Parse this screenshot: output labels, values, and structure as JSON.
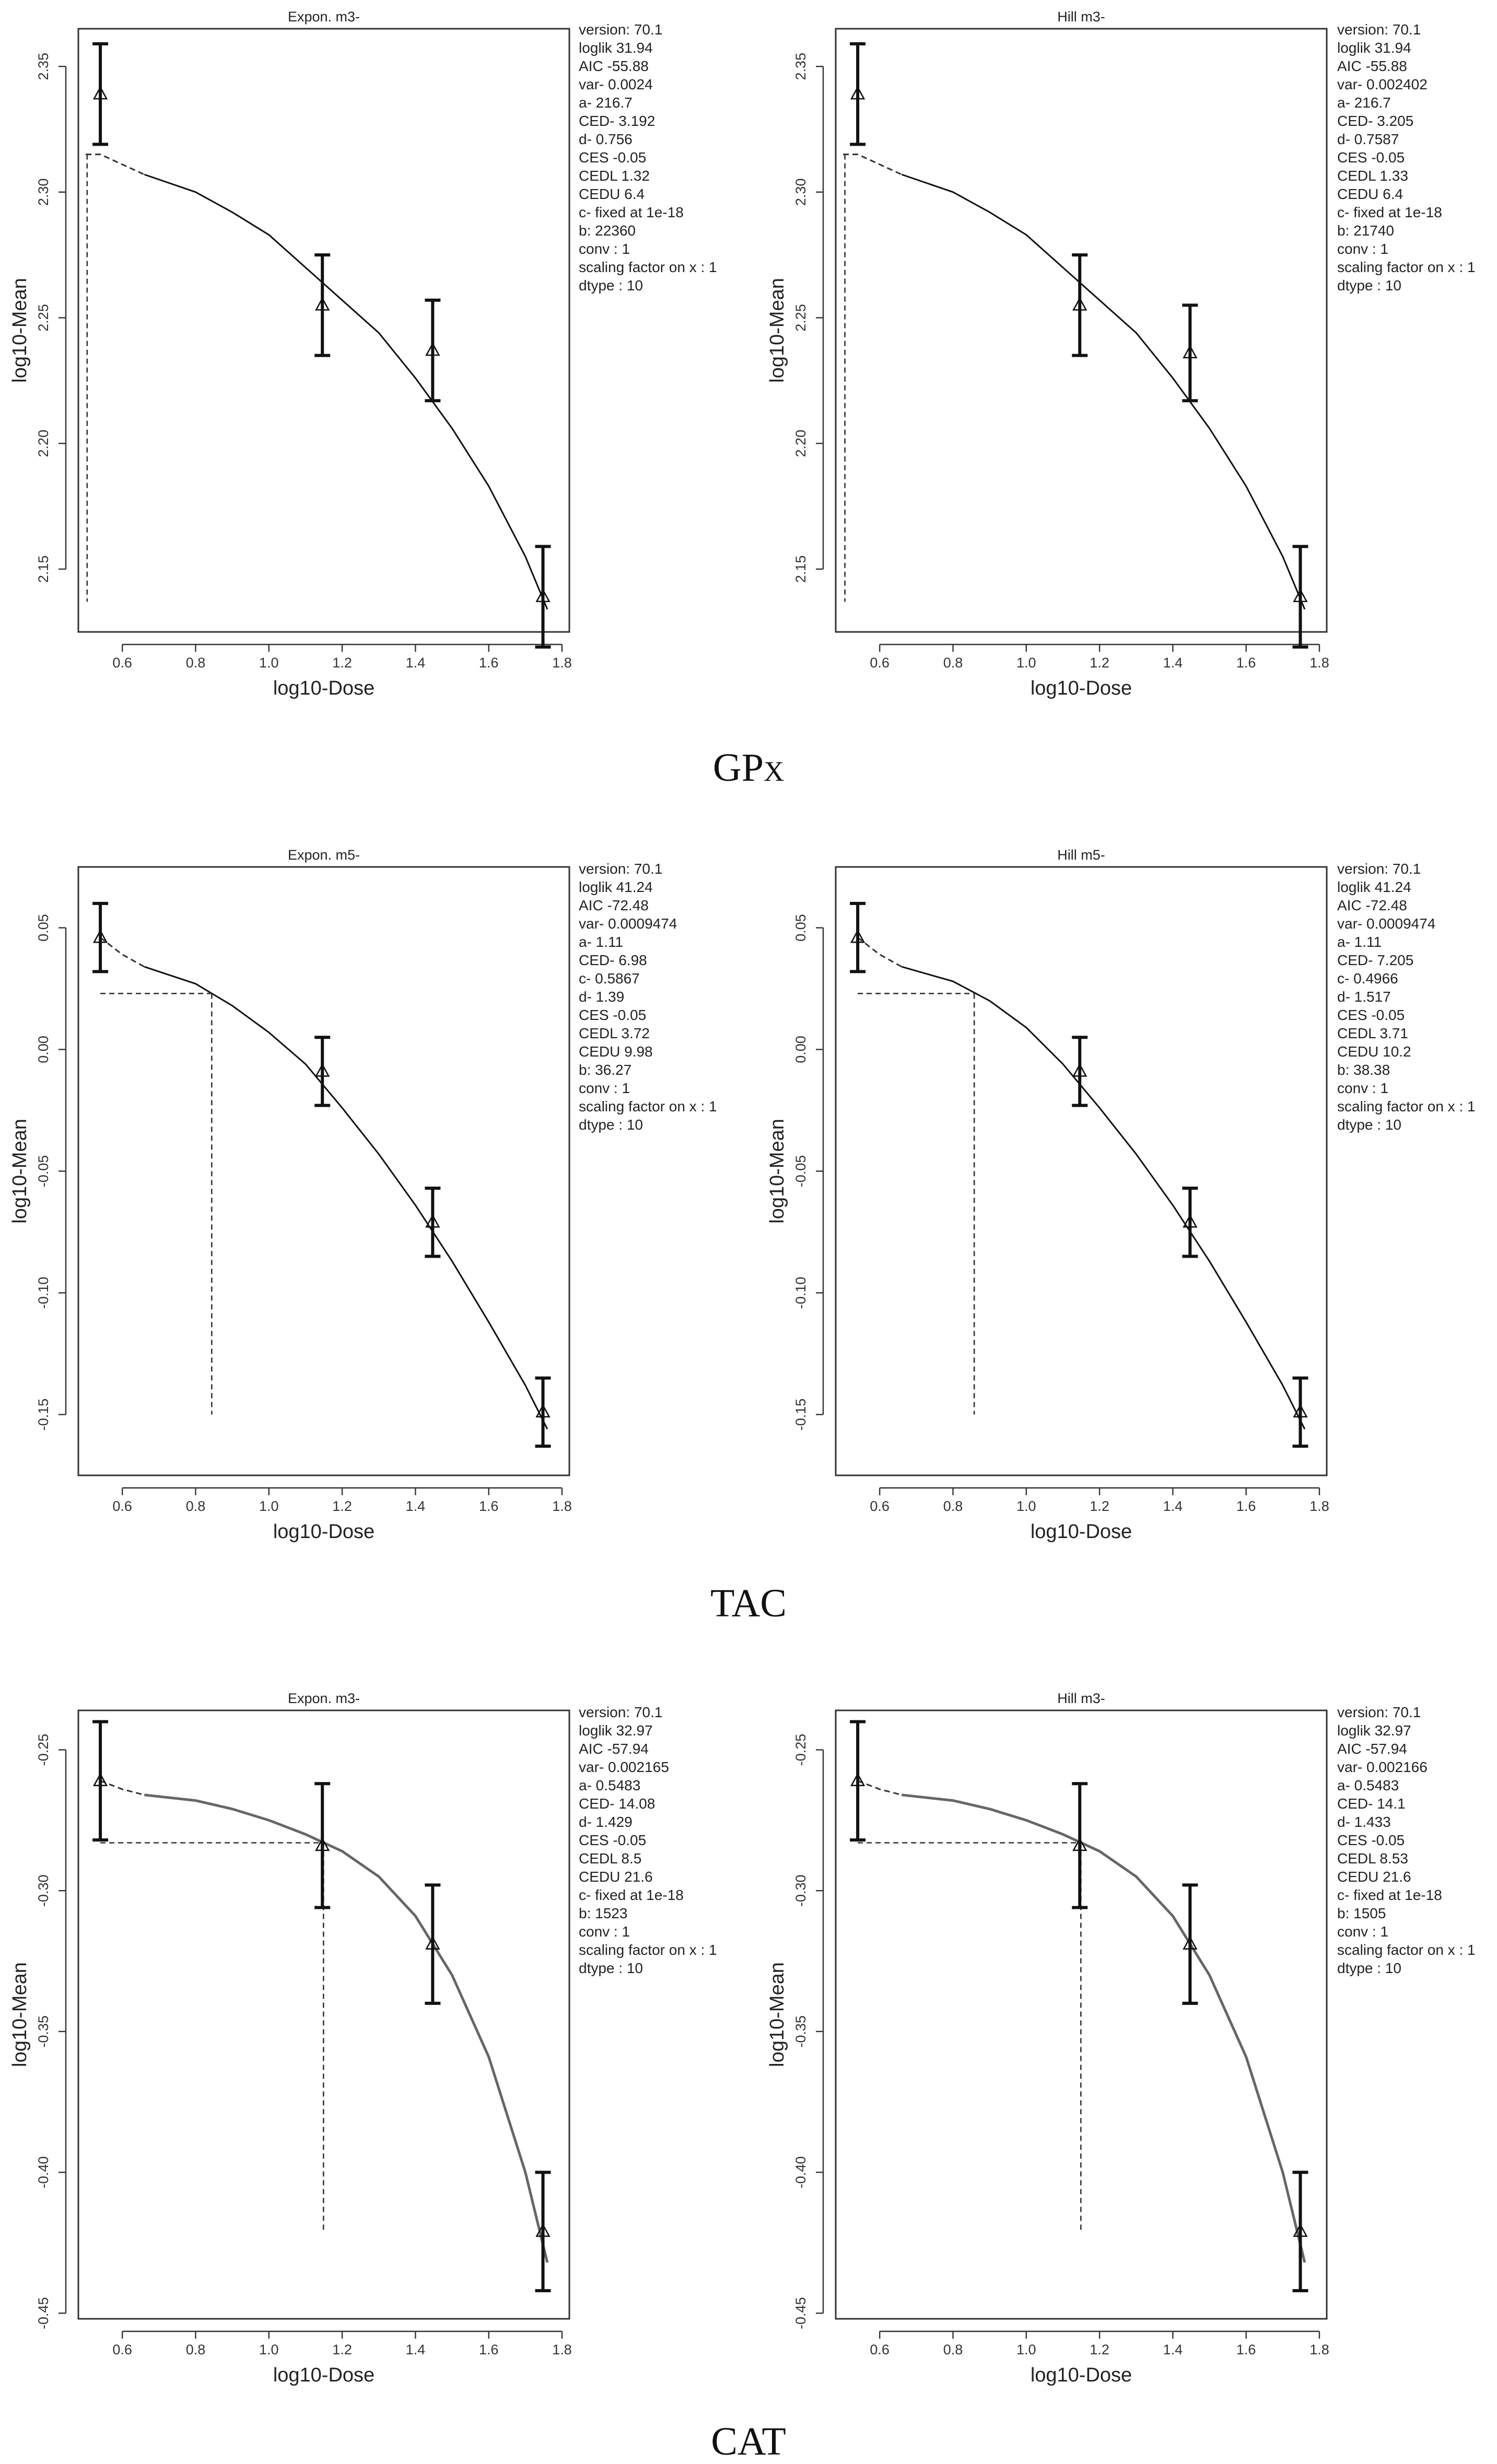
{
  "charts": [
    {
      "title": "Expon. m3-",
      "xlabel": "log10-Dose",
      "ylabel": "log10-Mean",
      "xticks": [
        "0.6",
        "0.8",
        "1.0",
        "1.2",
        "1.4",
        "1.6",
        "1.8"
      ],
      "yticks": [
        "2.15",
        "2.20",
        "2.25",
        "2.30",
        "2.35"
      ],
      "stats": [
        "version: 70.1",
        "loglik   31.94",
        "AIC   -55.88",
        "var-   0.0024",
        "a-   216.7",
        "CED-   3.192",
        "d-   0.756",
        "CES   -0.05",
        "CEDL   1.32",
        "CEDU   6.4",
        "c-  fixed at 1e-18",
        "b: 22360",
        "conv : 1",
        "scaling factor on x : 1",
        "dtype : 10"
      ]
    },
    {
      "title": "Hill m3-",
      "xlabel": "log10-Dose",
      "ylabel": "log10-Mean",
      "xticks": [
        "0.6",
        "0.8",
        "1.0",
        "1.2",
        "1.4",
        "1.6",
        "1.8"
      ],
      "yticks": [
        "2.15",
        "2.20",
        "2.25",
        "2.30",
        "2.35"
      ],
      "stats": [
        "version: 70.1",
        "loglik   31.94",
        "AIC   -55.88",
        "var-   0.002402",
        "a-   216.7",
        "CED-   3.205",
        "d-   0.7587",
        "CES   -0.05",
        "CEDL   1.33",
        "CEDU   6.4",
        "c-  fixed at 1e-18",
        "b: 21740",
        "conv : 1",
        "scaling factor on x : 1",
        "dtype : 10"
      ]
    },
    {
      "title": "Expon. m5-",
      "xlabel": "log10-Dose",
      "ylabel": "log10-Mean",
      "xticks": [
        "0.6",
        "0.8",
        "1.0",
        "1.2",
        "1.4",
        "1.6",
        "1.8"
      ],
      "yticks": [
        "-0.15",
        "-0.10",
        "-0.05",
        "0.00",
        "0.05"
      ],
      "stats": [
        "version: 70.1",
        "loglik   41.24",
        "AIC   -72.48",
        "var-   0.0009474",
        "a-   1.11",
        "CED-   6.98",
        "c-   0.5867",
        "d-   1.39",
        "CES   -0.05",
        "CEDL   3.72",
        "CEDU   9.98",
        "b: 36.27",
        "conv : 1",
        "scaling factor on x : 1",
        "dtype : 10"
      ]
    },
    {
      "title": "Hill m5-",
      "xlabel": "log10-Dose",
      "ylabel": "log10-Mean",
      "xticks": [
        "0.6",
        "0.8",
        "1.0",
        "1.2",
        "1.4",
        "1.6",
        "1.8"
      ],
      "yticks": [
        "-0.15",
        "-0.10",
        "-0.05",
        "0.00",
        "0.05"
      ],
      "stats": [
        "version: 70.1",
        "loglik   41.24",
        "AIC   -72.48",
        "var-   0.0009474",
        "a-   1.11",
        "CED-   7.205",
        "c-   0.4966",
        "d-   1.517",
        "CES   -0.05",
        "CEDL   3.71",
        "CEDU   10.2",
        "b: 38.38",
        "conv : 1",
        "scaling factor on x : 1",
        "dtype : 10"
      ]
    },
    {
      "title": "Expon. m3-",
      "xlabel": "log10-Dose",
      "ylabel": "log10-Mean",
      "xticks": [
        "0.6",
        "0.8",
        "1.0",
        "1.2",
        "1.4",
        "1.6",
        "1.8"
      ],
      "yticks": [
        "-0.45",
        "-0.40",
        "-0.35",
        "-0.30",
        "-0.25"
      ],
      "stats": [
        "version: 70.1",
        "loglik   32.97",
        "AIC   -57.94",
        "var-   0.002165",
        "a-   0.5483",
        "CED-   14.08",
        "d-   1.429",
        "CES   -0.05",
        "CEDL   8.5",
        "CEDU   21.6",
        "c-  fixed at 1e-18",
        "b: 1523",
        "conv : 1",
        "scaling factor on x : 1",
        "dtype : 10"
      ]
    },
    {
      "title": "Hill m3-",
      "xlabel": "log10-Dose",
      "ylabel": "log10-Mean",
      "xticks": [
        "0.6",
        "0.8",
        "1.0",
        "1.2",
        "1.4",
        "1.6",
        "1.8"
      ],
      "yticks": [
        "-0.45",
        "-0.40",
        "-0.35",
        "-0.30",
        "-0.25"
      ],
      "stats": [
        "version: 70.1",
        "loglik   32.97",
        "AIC   -57.94",
        "var-   0.002166",
        "a-   0.5483",
        "CED-   14.1",
        "d-   1.433",
        "CES   -0.05",
        "CEDL   8.53",
        "CEDU   21.6",
        "c-  fixed at 1e-18",
        "b: 1505",
        "conv : 1",
        "scaling factor on x : 1",
        "dtype : 10"
      ]
    }
  ],
  "captions": [
    "GPx",
    "TAC",
    "CAT"
  ],
  "chart_data": [
    {
      "type": "line",
      "panel": "GPx",
      "title": "Expon. m3-",
      "xlabel": "log10-Dose",
      "ylabel": "log10-Mean",
      "xlim": [
        0.48,
        1.82
      ],
      "ylim": [
        2.125,
        2.365
      ],
      "points": {
        "x": [
          0.54,
          1.146,
          1.447,
          1.748
        ],
        "y": [
          2.339,
          2.255,
          2.237,
          2.139
        ],
        "err": [
          0.02,
          0.02,
          0.02,
          0.02
        ]
      },
      "fit": {
        "x": [
          0.66,
          0.8,
          0.9,
          1.0,
          1.1,
          1.2,
          1.3,
          1.4,
          1.5,
          1.6,
          1.7,
          1.76
        ],
        "y": [
          2.307,
          2.3,
          2.292,
          2.283,
          2.27,
          2.257,
          2.244,
          2.226,
          2.206,
          2.183,
          2.155,
          2.134
        ]
      },
      "extrapolation": {
        "x": [
          0.5,
          0.54,
          0.66
        ],
        "y": [
          2.315,
          2.315,
          2.307
        ]
      },
      "ced": {
        "x": 0.504,
        "y_from": 2.315,
        "y_to": 2.137
      }
    },
    {
      "type": "line",
      "panel": "GPx",
      "title": "Hill m3-",
      "xlabel": "log10-Dose",
      "ylabel": "log10-Mean",
      "xlim": [
        0.48,
        1.82
      ],
      "ylim": [
        2.125,
        2.365
      ],
      "points": {
        "x": [
          0.54,
          1.146,
          1.447,
          1.748
        ],
        "y": [
          2.339,
          2.255,
          2.236,
          2.139
        ],
        "err": [
          0.02,
          0.02,
          0.019,
          0.02
        ]
      },
      "fit": {
        "x": [
          0.66,
          0.8,
          0.9,
          1.0,
          1.1,
          1.2,
          1.3,
          1.4,
          1.5,
          1.6,
          1.7,
          1.76
        ],
        "y": [
          2.307,
          2.3,
          2.292,
          2.283,
          2.27,
          2.257,
          2.244,
          2.226,
          2.206,
          2.183,
          2.155,
          2.134
        ]
      },
      "extrapolation": {
        "x": [
          0.5,
          0.54,
          0.66
        ],
        "y": [
          2.315,
          2.315,
          2.307
        ]
      },
      "ced": {
        "x": 0.505,
        "y_from": 2.315,
        "y_to": 2.137
      }
    },
    {
      "type": "line",
      "panel": "TAC",
      "title": "Expon. m5-",
      "xlabel": "log10-Dose",
      "ylabel": "log10-Mean",
      "xlim": [
        0.48,
        1.82
      ],
      "ylim": [
        -0.175,
        0.075
      ],
      "points": {
        "x": [
          0.54,
          1.146,
          1.447,
          1.748
        ],
        "y": [
          0.046,
          -0.009,
          -0.071,
          -0.149
        ],
        "err": [
          0.014,
          0.014,
          0.014,
          0.014
        ]
      },
      "fit": {
        "x": [
          0.66,
          0.8,
          0.9,
          1.0,
          1.1,
          1.2,
          1.3,
          1.4,
          1.5,
          1.6,
          1.7,
          1.76
        ],
        "y": [
          0.034,
          0.027,
          0.018,
          0.007,
          -0.006,
          -0.024,
          -0.043,
          -0.064,
          -0.087,
          -0.112,
          -0.138,
          -0.156
        ]
      },
      "extrapolation": {
        "x": [
          0.54,
          0.6,
          0.66
        ],
        "y": [
          0.046,
          0.039,
          0.034
        ]
      },
      "ced": {
        "x": 0.844,
        "y_from": 0.023,
        "y_to": -0.15
      }
    },
    {
      "type": "line",
      "panel": "TAC",
      "title": "Hill m5-",
      "xlabel": "log10-Dose",
      "ylabel": "log10-Mean",
      "xlim": [
        0.48,
        1.82
      ],
      "ylim": [
        -0.175,
        0.075
      ],
      "points": {
        "x": [
          0.54,
          1.146,
          1.447,
          1.748
        ],
        "y": [
          0.046,
          -0.009,
          -0.071,
          -0.149
        ],
        "err": [
          0.014,
          0.014,
          0.014,
          0.014
        ]
      },
      "fit": {
        "x": [
          0.66,
          0.8,
          0.9,
          1.0,
          1.1,
          1.2,
          1.3,
          1.4,
          1.5,
          1.6,
          1.7,
          1.76
        ],
        "y": [
          0.034,
          0.028,
          0.02,
          0.009,
          -0.006,
          -0.024,
          -0.043,
          -0.064,
          -0.087,
          -0.112,
          -0.138,
          -0.156
        ]
      },
      "extrapolation": {
        "x": [
          0.54,
          0.6,
          0.66
        ],
        "y": [
          0.046,
          0.039,
          0.034
        ]
      },
      "ced": {
        "x": 0.858,
        "y_from": 0.023,
        "y_to": -0.15
      }
    },
    {
      "type": "line",
      "panel": "CAT",
      "title": "Expon. m3-",
      "xlabel": "log10-Dose",
      "ylabel": "log10-Mean",
      "xlim": [
        0.48,
        1.82
      ],
      "ylim": [
        -0.452,
        -0.236
      ],
      "points": {
        "x": [
          0.54,
          1.146,
          1.447,
          1.748
        ],
        "y": [
          -0.261,
          -0.284,
          -0.319,
          -0.421
        ],
        "err": [
          0.021,
          0.022,
          0.021,
          0.021
        ]
      },
      "fit": {
        "x": [
          0.66,
          0.8,
          0.9,
          1.0,
          1.1,
          1.2,
          1.3,
          1.4,
          1.5,
          1.6,
          1.7,
          1.76
        ],
        "y": [
          -0.266,
          -0.268,
          -0.271,
          -0.275,
          -0.28,
          -0.286,
          -0.295,
          -0.309,
          -0.33,
          -0.359,
          -0.4,
          -0.432
        ]
      },
      "extrapolation": {
        "x": [
          0.54,
          0.6,
          0.66
        ],
        "y": [
          -0.261,
          -0.264,
          -0.266
        ]
      },
      "ced": {
        "x": 1.149,
        "y_from": -0.283,
        "y_to": -0.421
      }
    },
    {
      "type": "line",
      "panel": "CAT",
      "title": "Hill m3-",
      "xlabel": "log10-Dose",
      "ylabel": "log10-Mean",
      "xlim": [
        0.48,
        1.82
      ],
      "ylim": [
        -0.452,
        -0.236
      ],
      "points": {
        "x": [
          0.54,
          1.146,
          1.447,
          1.748
        ],
        "y": [
          -0.261,
          -0.284,
          -0.319,
          -0.421
        ],
        "err": [
          0.021,
          0.022,
          0.021,
          0.021
        ]
      },
      "fit": {
        "x": [
          0.66,
          0.8,
          0.9,
          1.0,
          1.1,
          1.2,
          1.3,
          1.4,
          1.5,
          1.6,
          1.7,
          1.76
        ],
        "y": [
          -0.266,
          -0.268,
          -0.271,
          -0.275,
          -0.28,
          -0.286,
          -0.295,
          -0.309,
          -0.33,
          -0.359,
          -0.4,
          -0.432
        ]
      },
      "extrapolation": {
        "x": [
          0.54,
          0.6,
          0.66
        ],
        "y": [
          -0.261,
          -0.264,
          -0.266
        ]
      },
      "ced": {
        "x": 1.149,
        "y_from": -0.283,
        "y_to": -0.421
      }
    }
  ]
}
